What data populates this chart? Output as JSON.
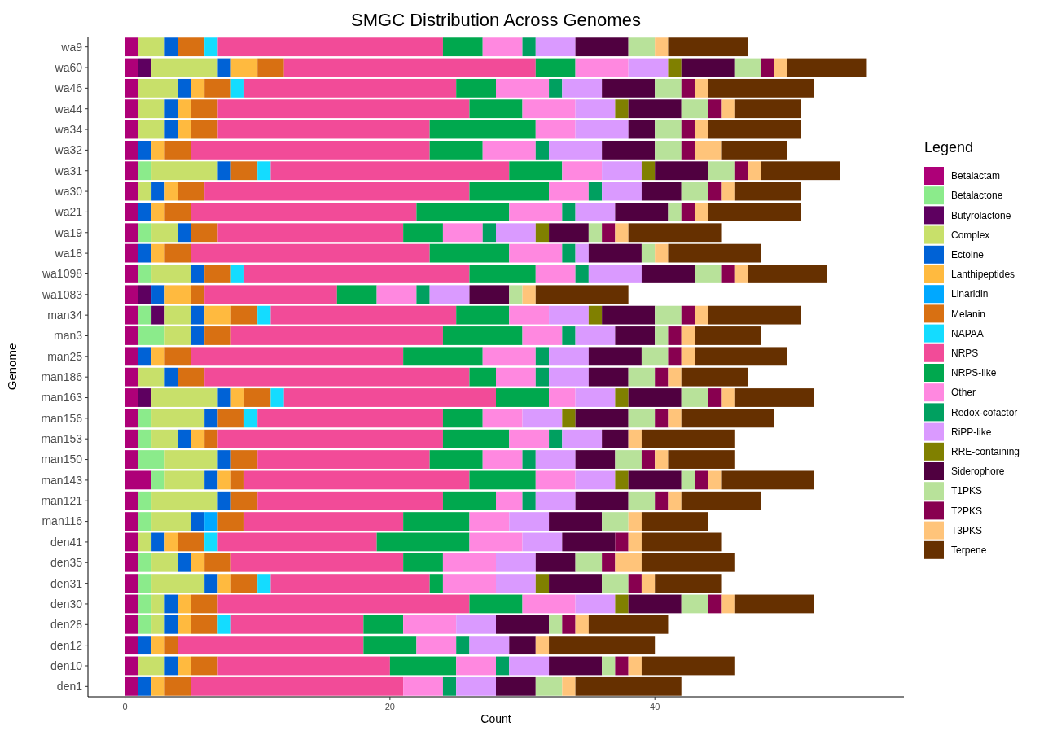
{
  "chart_data": {
    "type": "bar",
    "orientation": "horizontal",
    "stacked": true,
    "title": "SMGC Distribution Across Genomes",
    "xlabel": "Count",
    "ylabel": "Genome",
    "legend_title": "Legend",
    "legend": "right",
    "grid": false,
    "categories": [
      "wa9",
      "wa60",
      "wa46",
      "wa44",
      "wa34",
      "wa32",
      "wa31",
      "wa30",
      "wa21",
      "wa19",
      "wa18",
      "wa1098",
      "wa1083",
      "man34",
      "man3",
      "man25",
      "man186",
      "man163",
      "man156",
      "man153",
      "man150",
      "man143",
      "man121",
      "man116",
      "den41",
      "den35",
      "den31",
      "den30",
      "den28",
      "den12",
      "den10",
      "den1"
    ],
    "xlim": [
      -2.8,
      58.8
    ],
    "xticks": [
      0,
      20,
      40
    ],
    "series": [
      {
        "name": "Betalactam",
        "color": "#ae0078",
        "values": [
          1,
          1,
          1,
          1,
          1,
          1,
          1,
          1,
          1,
          1,
          1,
          1,
          1,
          1,
          1,
          1,
          1,
          1,
          1,
          1,
          1,
          2,
          1,
          1,
          1,
          1,
          1,
          1,
          1,
          1,
          1,
          1
        ]
      },
      {
        "name": "Betalactone",
        "color": "#8beb8b",
        "values": [
          0,
          0,
          0,
          0,
          0,
          0,
          1,
          0,
          0,
          1,
          0,
          1,
          0,
          1,
          2,
          0,
          0,
          0,
          1,
          1,
          2,
          1,
          1,
          1,
          0,
          1,
          1,
          1,
          1,
          0,
          0,
          0
        ]
      },
      {
        "name": "Butyrolactone",
        "color": "#5e0060",
        "values": [
          0,
          1,
          0,
          0,
          0,
          0,
          0,
          0,
          0,
          0,
          0,
          0,
          1,
          1,
          0,
          0,
          0,
          1,
          0,
          0,
          0,
          0,
          0,
          0,
          0,
          0,
          0,
          0,
          0,
          0,
          0,
          0
        ]
      },
      {
        "name": "Complex",
        "color": "#c8e06a",
        "values": [
          2,
          5,
          3,
          2,
          2,
          0,
          5,
          1,
          0,
          2,
          0,
          3,
          0,
          2,
          2,
          0,
          2,
          5,
          4,
          2,
          4,
          3,
          5,
          3,
          1,
          2,
          4,
          1,
          1,
          0,
          2,
          0
        ]
      },
      {
        "name": "Ectoine",
        "color": "#0062d6",
        "values": [
          1,
          1,
          1,
          1,
          1,
          1,
          1,
          1,
          1,
          1,
          1,
          1,
          1,
          1,
          1,
          1,
          1,
          1,
          1,
          1,
          1,
          1,
          1,
          1,
          1,
          1,
          1,
          1,
          1,
          1,
          1,
          1
        ]
      },
      {
        "name": "Lanthipeptides",
        "color": "#ffba3f",
        "values": [
          0,
          2,
          1,
          1,
          1,
          1,
          0,
          1,
          1,
          0,
          1,
          0,
          2,
          2,
          0,
          1,
          0,
          1,
          0,
          1,
          0,
          1,
          0,
          0,
          1,
          1,
          1,
          1,
          1,
          1,
          1,
          1
        ]
      },
      {
        "name": "Linaridin",
        "color": "#00a8ff",
        "values": [
          0,
          0,
          0,
          0,
          0,
          0,
          0,
          0,
          0,
          0,
          0,
          0,
          0,
          0,
          0,
          0,
          0,
          0,
          0,
          0,
          0,
          0,
          0,
          1,
          0,
          0,
          0,
          0,
          0,
          0,
          0,
          0
        ]
      },
      {
        "name": "Melanin",
        "color": "#d87012",
        "values": [
          2,
          2,
          2,
          2,
          2,
          2,
          2,
          2,
          2,
          2,
          2,
          2,
          1,
          2,
          2,
          2,
          2,
          2,
          2,
          1,
          2,
          1,
          2,
          2,
          2,
          2,
          2,
          2,
          2,
          1,
          2,
          2
        ]
      },
      {
        "name": "NAPAA",
        "color": "#14dcff",
        "values": [
          1,
          0,
          1,
          0,
          0,
          0,
          1,
          0,
          0,
          0,
          0,
          1,
          0,
          1,
          0,
          0,
          0,
          1,
          1,
          0,
          0,
          0,
          0,
          0,
          1,
          0,
          1,
          0,
          1,
          0,
          0,
          0
        ]
      },
      {
        "name": "NRPS",
        "color": "#f24b98",
        "values": [
          17,
          19,
          16,
          19,
          16,
          18,
          18,
          20,
          17,
          14,
          18,
          17,
          10,
          14,
          16,
          16,
          20,
          16,
          14,
          17,
          13,
          17,
          14,
          12,
          12,
          13,
          12,
          19,
          10,
          14,
          13,
          16
        ]
      },
      {
        "name": "NRPS-like",
        "color": "#00a84e",
        "values": [
          3,
          3,
          3,
          4,
          8,
          4,
          4,
          6,
          7,
          3,
          6,
          5,
          3,
          4,
          6,
          6,
          2,
          4,
          3,
          5,
          4,
          5,
          4,
          5,
          7,
          3,
          1,
          4,
          3,
          4,
          5,
          0
        ]
      },
      {
        "name": "Other",
        "color": "#ff88e0",
        "values": [
          3,
          4,
          4,
          4,
          3,
          4,
          3,
          3,
          4,
          3,
          4,
          3,
          3,
          3,
          3,
          4,
          3,
          2,
          3,
          3,
          3,
          3,
          2,
          3,
          4,
          4,
          4,
          4,
          4,
          3,
          3,
          3
        ]
      },
      {
        "name": "Redox-cofactor",
        "color": "#00a060",
        "values": [
          1,
          0,
          1,
          0,
          0,
          1,
          0,
          1,
          1,
          1,
          1,
          1,
          1,
          0,
          1,
          1,
          1,
          0,
          0,
          1,
          1,
          0,
          1,
          0,
          0,
          0,
          0,
          0,
          0,
          1,
          1,
          1
        ]
      },
      {
        "name": "RiPP-like",
        "color": "#da9aff",
        "values": [
          3,
          3,
          3,
          3,
          4,
          4,
          3,
          3,
          3,
          3,
          1,
          4,
          3,
          3,
          3,
          3,
          3,
          3,
          3,
          3,
          3,
          3,
          3,
          3,
          3,
          3,
          3,
          3,
          3,
          3,
          3,
          3
        ]
      },
      {
        "name": "RRE-containing",
        "color": "#808000",
        "values": [
          0,
          1,
          0,
          1,
          0,
          0,
          1,
          0,
          0,
          1,
          0,
          0,
          0,
          1,
          0,
          0,
          0,
          1,
          1,
          0,
          0,
          1,
          0,
          0,
          0,
          0,
          1,
          1,
          0,
          0,
          0,
          0
        ]
      },
      {
        "name": "Siderophore",
        "color": "#500040",
        "values": [
          4,
          4,
          4,
          4,
          2,
          4,
          4,
          3,
          4,
          3,
          4,
          4,
          3,
          4,
          3,
          4,
          3,
          4,
          4,
          2,
          3,
          4,
          4,
          4,
          4,
          3,
          4,
          4,
          4,
          2,
          4,
          3
        ]
      },
      {
        "name": "T1PKS",
        "color": "#b8e29a",
        "values": [
          2,
          2,
          2,
          2,
          2,
          2,
          2,
          2,
          1,
          1,
          1,
          2,
          1,
          2,
          1,
          2,
          2,
          2,
          2,
          0,
          2,
          1,
          2,
          2,
          0,
          2,
          2,
          2,
          1,
          0,
          1,
          2
        ]
      },
      {
        "name": "T2PKS",
        "color": "#880050",
        "values": [
          0,
          1,
          1,
          1,
          1,
          1,
          1,
          1,
          1,
          1,
          0,
          1,
          0,
          1,
          1,
          1,
          1,
          1,
          1,
          0,
          1,
          1,
          1,
          0,
          1,
          1,
          1,
          1,
          1,
          0,
          1,
          0
        ]
      },
      {
        "name": "T3PKS",
        "color": "#ffc47a",
        "values": [
          1,
          1,
          1,
          1,
          1,
          2,
          1,
          1,
          1,
          1,
          1,
          1,
          1,
          1,
          1,
          1,
          1,
          1,
          1,
          1,
          1,
          1,
          1,
          1,
          1,
          2,
          1,
          1,
          1,
          1,
          1,
          1
        ]
      },
      {
        "name": "Terpene",
        "color": "#663000",
        "values": [
          6,
          6,
          8,
          5,
          7,
          5,
          6,
          5,
          7,
          7,
          7,
          6,
          7,
          7,
          5,
          7,
          5,
          6,
          7,
          7,
          5,
          7,
          6,
          5,
          6,
          7,
          5,
          6,
          6,
          8,
          7,
          8
        ]
      }
    ]
  }
}
